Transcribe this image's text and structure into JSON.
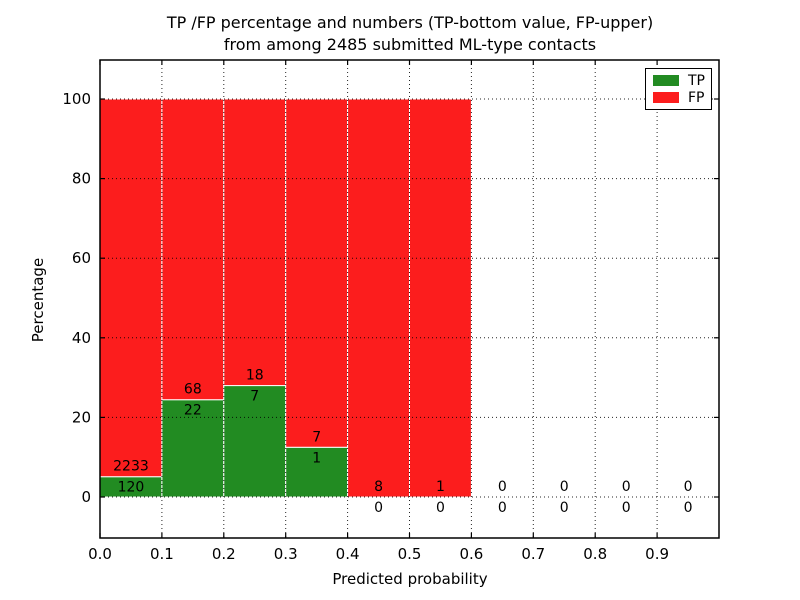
{
  "figure": {
    "title_line1": "TP /FP percentage and numbers (TP-bottom value, FP-upper)",
    "title_line2": "from among 2485 submitted ML-type contacts"
  },
  "chart_data": {
    "type": "bar",
    "stacked": true,
    "title": "TP /FP percentage and numbers (TP-bottom value, FP-upper)\nfrom among 2485 submitted ML-type contacts",
    "xlabel": "Predicted probability",
    "ylabel": "Percentage",
    "xlim": [
      0.0,
      1.0
    ],
    "ylim": [
      -10.3,
      109.8
    ],
    "x_ticks": [
      0.0,
      0.1,
      0.2,
      0.3,
      0.4,
      0.5,
      0.6,
      0.7,
      0.8,
      0.9
    ],
    "x_tick_labels": [
      "0.0",
      "0.1",
      "0.2",
      "0.3",
      "0.4",
      "0.5",
      "0.6",
      "0.7",
      "0.8",
      "0.9"
    ],
    "y_ticks": [
      0,
      20,
      40,
      60,
      80,
      100
    ],
    "y_tick_labels": [
      "0",
      "20",
      "40",
      "60",
      "80",
      "100"
    ],
    "bin_width": 0.1,
    "bin_starts": [
      0.0,
      0.1,
      0.2,
      0.3,
      0.4,
      0.5,
      0.6,
      0.7,
      0.8,
      0.9
    ],
    "series": [
      {
        "name": "TP",
        "color": "#228b22",
        "counts": [
          120,
          22,
          7,
          1,
          0,
          0,
          0,
          0,
          0,
          0
        ]
      },
      {
        "name": "FP",
        "color": "#fc1d1d",
        "counts": [
          2233,
          68,
          18,
          7,
          8,
          1,
          0,
          0,
          0,
          0
        ]
      }
    ],
    "tp_percent_of_bin": [
      5.1,
      24.4,
      28.0,
      12.5,
      0.0,
      0.0,
      0.0,
      0.0,
      0.0,
      0.0
    ],
    "total_contacts": 2485,
    "grid": true,
    "grid_style": "dotted",
    "legend_position": "upper right",
    "bar_edge_color": "#ffffff",
    "axis_color": "#000000",
    "background_color": "#ffffff"
  }
}
